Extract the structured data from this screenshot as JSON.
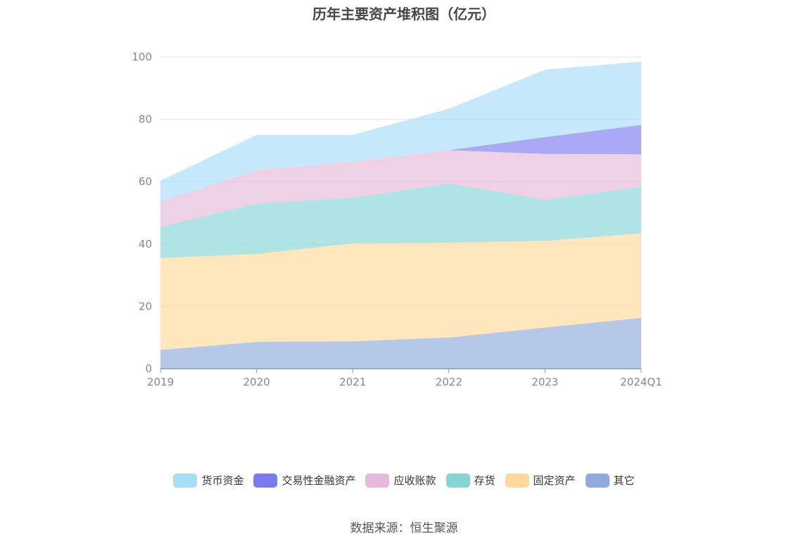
{
  "title": "历年主要资产堆积图（亿元）",
  "source": "数据来源：恒生聚源",
  "chart_data": {
    "type": "area",
    "stacked": true,
    "title": "历年主要资产堆积图（亿元）",
    "x": [
      "2019",
      "2020",
      "2021",
      "2022",
      "2023",
      "2024Q1"
    ],
    "ylim": [
      0,
      100
    ],
    "yticks": [
      0,
      20,
      40,
      60,
      80,
      100
    ],
    "grid": true,
    "legend_position": "bottom",
    "series": [
      {
        "name": "其它",
        "color": "#8FAADC",
        "values": [
          6.0,
          8.6,
          8.8,
          10.0,
          13.2,
          16.3
        ]
      },
      {
        "name": "固定资产",
        "color": "#FDD89A",
        "values": [
          29.5,
          28.2,
          31.4,
          30.4,
          27.8,
          27.1
        ]
      },
      {
        "name": "存货",
        "color": "#86D4D6",
        "values": [
          10.0,
          16.2,
          14.6,
          19.0,
          13.2,
          15.0
        ]
      },
      {
        "name": "应收账款",
        "color": "#E6B8DA",
        "values": [
          8.0,
          10.7,
          11.6,
          10.7,
          14.7,
          10.4
        ]
      },
      {
        "name": "交易性金融资产",
        "color": "#7B7BF0",
        "values": [
          0,
          0,
          0,
          0,
          5.4,
          9.4
        ]
      },
      {
        "name": "货币资金",
        "color": "#A6DDF7",
        "values": [
          6.8,
          11.3,
          8.6,
          13.3,
          21.6,
          20.3
        ]
      }
    ],
    "legend_order": [
      "货币资金",
      "交易性金融资产",
      "应收账款",
      "存货",
      "固定资产",
      "其它"
    ]
  }
}
